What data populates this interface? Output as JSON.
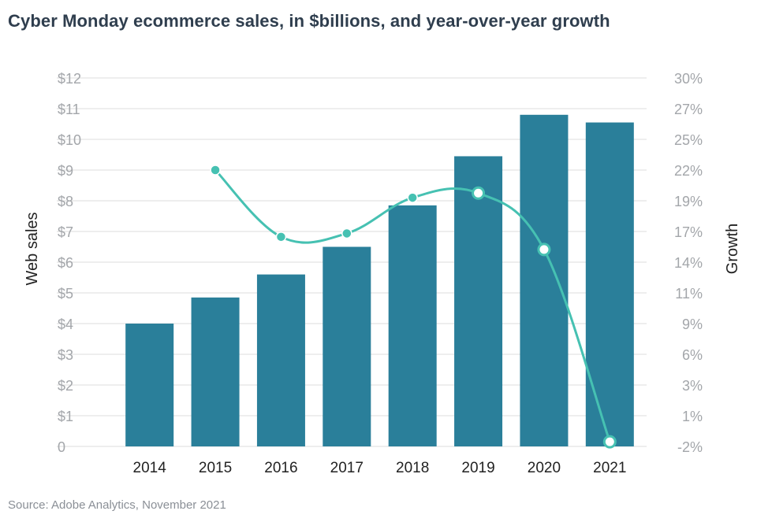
{
  "title": "Cyber Monday ecommerce sales, in $billions, and year-over-year growth",
  "source": "Source: Adobe Analytics, November 2021",
  "colors": {
    "bar": "#2a7f9a",
    "line": "#46c1b2",
    "grid": "#dcdcdc"
  },
  "chart_data": {
    "type": "bar",
    "title": "Cyber Monday ecommerce sales, in $billions, and year-over-year growth",
    "categories": [
      "2014",
      "2015",
      "2016",
      "2017",
      "2018",
      "2019",
      "2020",
      "2021"
    ],
    "series": [
      {
        "axis": "left",
        "type": "bar",
        "values": [
          4.0,
          4.85,
          5.6,
          6.5,
          7.85,
          9.45,
          10.8,
          10.55
        ]
      },
      {
        "axis": "right",
        "type": "line",
        "values": [
          null,
          22.0,
          16.2,
          16.5,
          19.6,
          20.0,
          15.1,
          -1.6
        ]
      }
    ],
    "left_axis": {
      "label": "Web sales",
      "ylim": [
        0,
        12
      ],
      "ticks": [
        "0",
        "$1",
        "$2",
        "$3",
        "$4",
        "$5",
        "$6",
        "$7",
        "$8",
        "$9",
        "$10",
        "$11",
        "$12"
      ]
    },
    "right_axis": {
      "label": "Growth",
      "ylim": [
        -2,
        30
      ],
      "ticks": [
        "-2%",
        "1%",
        "3%",
        "6%",
        "9%",
        "11%",
        "14%",
        "17%",
        "19%",
        "22%",
        "25%",
        "27%",
        "30%"
      ]
    },
    "grid": true,
    "legend": "none"
  }
}
